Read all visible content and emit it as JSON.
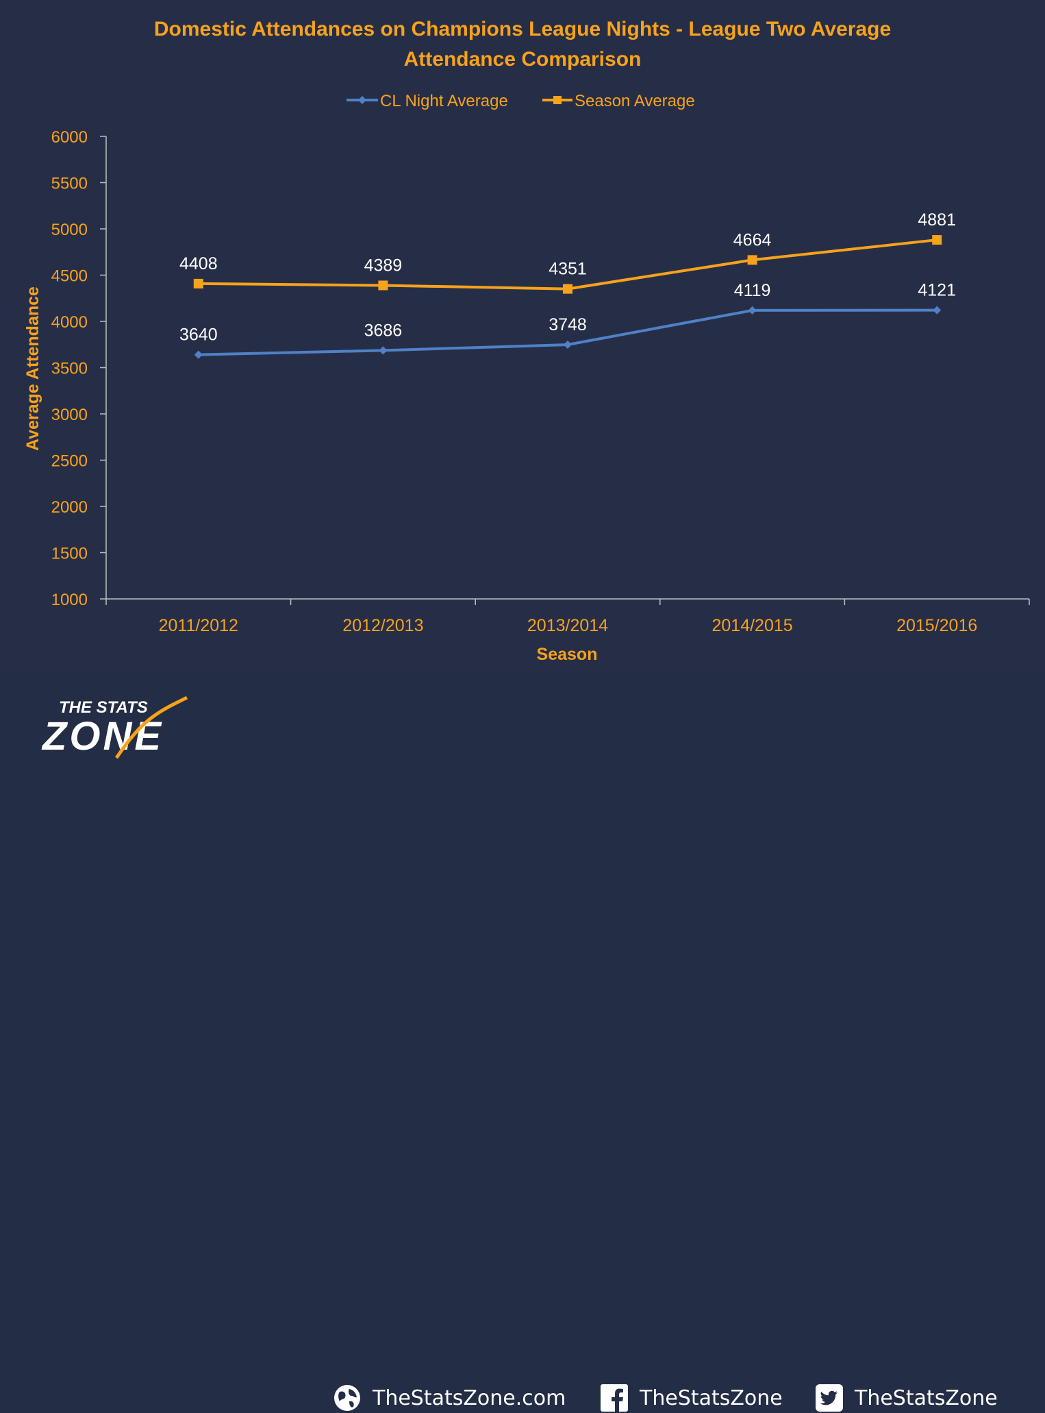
{
  "chart_data": {
    "type": "line",
    "title": "Domestic Attendances on Champions League Nights - League Two Average Attendance Comparison",
    "title_lines": [
      "Domestic Attendances on Champions League Nights - League Two Average",
      "Attendance Comparison"
    ],
    "xlabel": "Season",
    "ylabel": "Average Attendance",
    "categories": [
      "2011/2012",
      "2012/2013",
      "2013/2014",
      "2014/2015",
      "2015/2016"
    ],
    "ylim": [
      1000,
      6000
    ],
    "yticks": [
      1000,
      1500,
      2000,
      2500,
      3000,
      3500,
      4000,
      4500,
      5000,
      5500,
      6000
    ],
    "grid": false,
    "legend_position": "top",
    "series": [
      {
        "name": "CL Night Average",
        "color": "#4f81c7",
        "marker": "diamond",
        "values": [
          3640,
          3686,
          3748,
          4119,
          4121
        ]
      },
      {
        "name": "Season Average",
        "color": "#f7a21b",
        "marker": "square",
        "values": [
          4408,
          4389,
          4351,
          4664,
          4881
        ]
      }
    ]
  },
  "colors": {
    "accent": "#f7a21b",
    "background": "#262e47",
    "axis": "#bfbfbf",
    "label_text": "#ffffff"
  },
  "footer": {
    "logo_top": "THE STATS",
    "logo_bottom": "ZONE",
    "website": "TheStatsZone.com",
    "facebook": "TheStatsZone",
    "twitter": "TheStatsZone",
    "icons": [
      "globe-icon",
      "facebook-icon",
      "twitter-icon"
    ]
  }
}
